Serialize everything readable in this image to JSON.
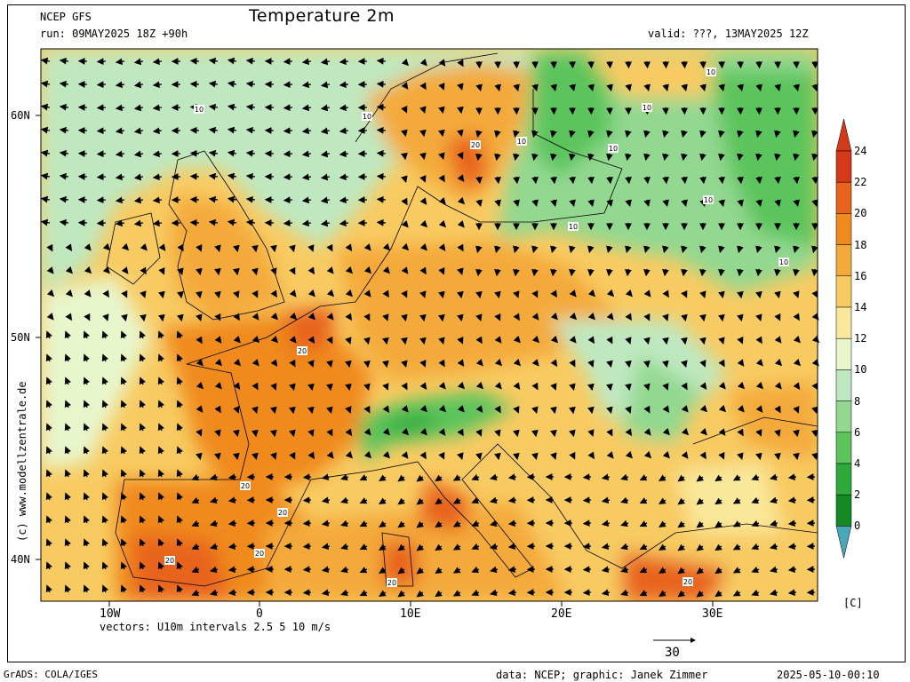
{
  "header": {
    "model": "NCEP GFS",
    "run": "run: 09MAY2025 18Z +90h",
    "title": "Temperature 2m",
    "valid": "valid: ???, 13MAY2025 12Z"
  },
  "axes": {
    "lat_labels": [
      "60N",
      "50N",
      "40N"
    ],
    "lon_labels": [
      "10W",
      "0",
      "10E",
      "20E",
      "30E"
    ],
    "lon_range": [
      -15,
      37
    ],
    "lat_range": [
      37.5,
      63
    ]
  },
  "legend": {
    "levels": [
      "24",
      "22",
      "20",
      "18",
      "16",
      "14",
      "12",
      "10",
      "8",
      "6",
      "4",
      "2",
      "0"
    ],
    "unit": "[C]",
    "colors": [
      "#d23a1a",
      "#e8641c",
      "#f08a1e",
      "#f4aa3a",
      "#f8cb62",
      "#fae89a",
      "#e8f6cc",
      "#bfe8c0",
      "#92d890",
      "#5cc45c",
      "#2eaa3a",
      "#138a24",
      "#49a8b8"
    ]
  },
  "vectors": {
    "caption": "vectors: U10m intervals 2.5 5 10 m/s",
    "ref_value": "30"
  },
  "contour_labels": [
    "10",
    "10",
    "10",
    "10",
    "10",
    "10",
    "10",
    "10",
    "10",
    "20",
    "20",
    "20",
    "20",
    "20",
    "20",
    "20",
    "20"
  ],
  "footer": {
    "left": "GrADS: COLA/IGES",
    "credit": "data: NCEP; graphic: Janek Zimmer",
    "timestamp": "2025-05-10-00:10"
  },
  "sidebar": {
    "site": "(c) www.modellzentrale.de"
  },
  "chart_data": {
    "type": "heatmap",
    "title": "Temperature 2m",
    "unit": "C",
    "scale": [
      0,
      2,
      4,
      6,
      8,
      10,
      12,
      14,
      16,
      18,
      20,
      22,
      24
    ],
    "x_ticks": [
      "10W",
      "0",
      "10E",
      "20E",
      "30E"
    ],
    "y_ticks": [
      "60N",
      "50N",
      "40N"
    ]
  }
}
